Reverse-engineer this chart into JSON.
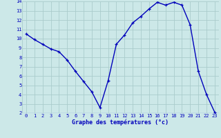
{
  "hours": [
    0,
    1,
    2,
    3,
    4,
    5,
    6,
    7,
    8,
    9,
    10,
    11,
    12,
    13,
    14,
    15,
    16,
    17,
    18,
    19,
    20,
    21,
    22,
    23
  ],
  "temps": [
    10.5,
    9.9,
    9.4,
    8.9,
    8.6,
    7.7,
    6.5,
    5.4,
    4.3,
    2.6,
    5.5,
    9.4,
    10.4,
    11.7,
    12.4,
    13.2,
    13.9,
    13.6,
    13.9,
    13.6,
    11.5,
    6.5,
    4.0,
    2.1
  ],
  "line_color": "#0000bb",
  "marker": "+",
  "bg_color": "#cce8e8",
  "grid_color": "#aacccc",
  "axis_label_color": "#0000bb",
  "tick_color": "#0000bb",
  "xlabel": "Graphe des températures (°c)",
  "ylim": [
    2,
    14
  ],
  "xlim_min": -0.5,
  "xlim_max": 23.5,
  "yticks": [
    2,
    3,
    4,
    5,
    6,
    7,
    8,
    9,
    10,
    11,
    12,
    13,
    14
  ],
  "xticks": [
    0,
    1,
    2,
    3,
    4,
    5,
    6,
    7,
    8,
    9,
    10,
    11,
    12,
    13,
    14,
    15,
    16,
    17,
    18,
    19,
    20,
    21,
    22,
    23
  ],
  "tick_fontsize": 5.0,
  "xlabel_fontsize": 6.0
}
